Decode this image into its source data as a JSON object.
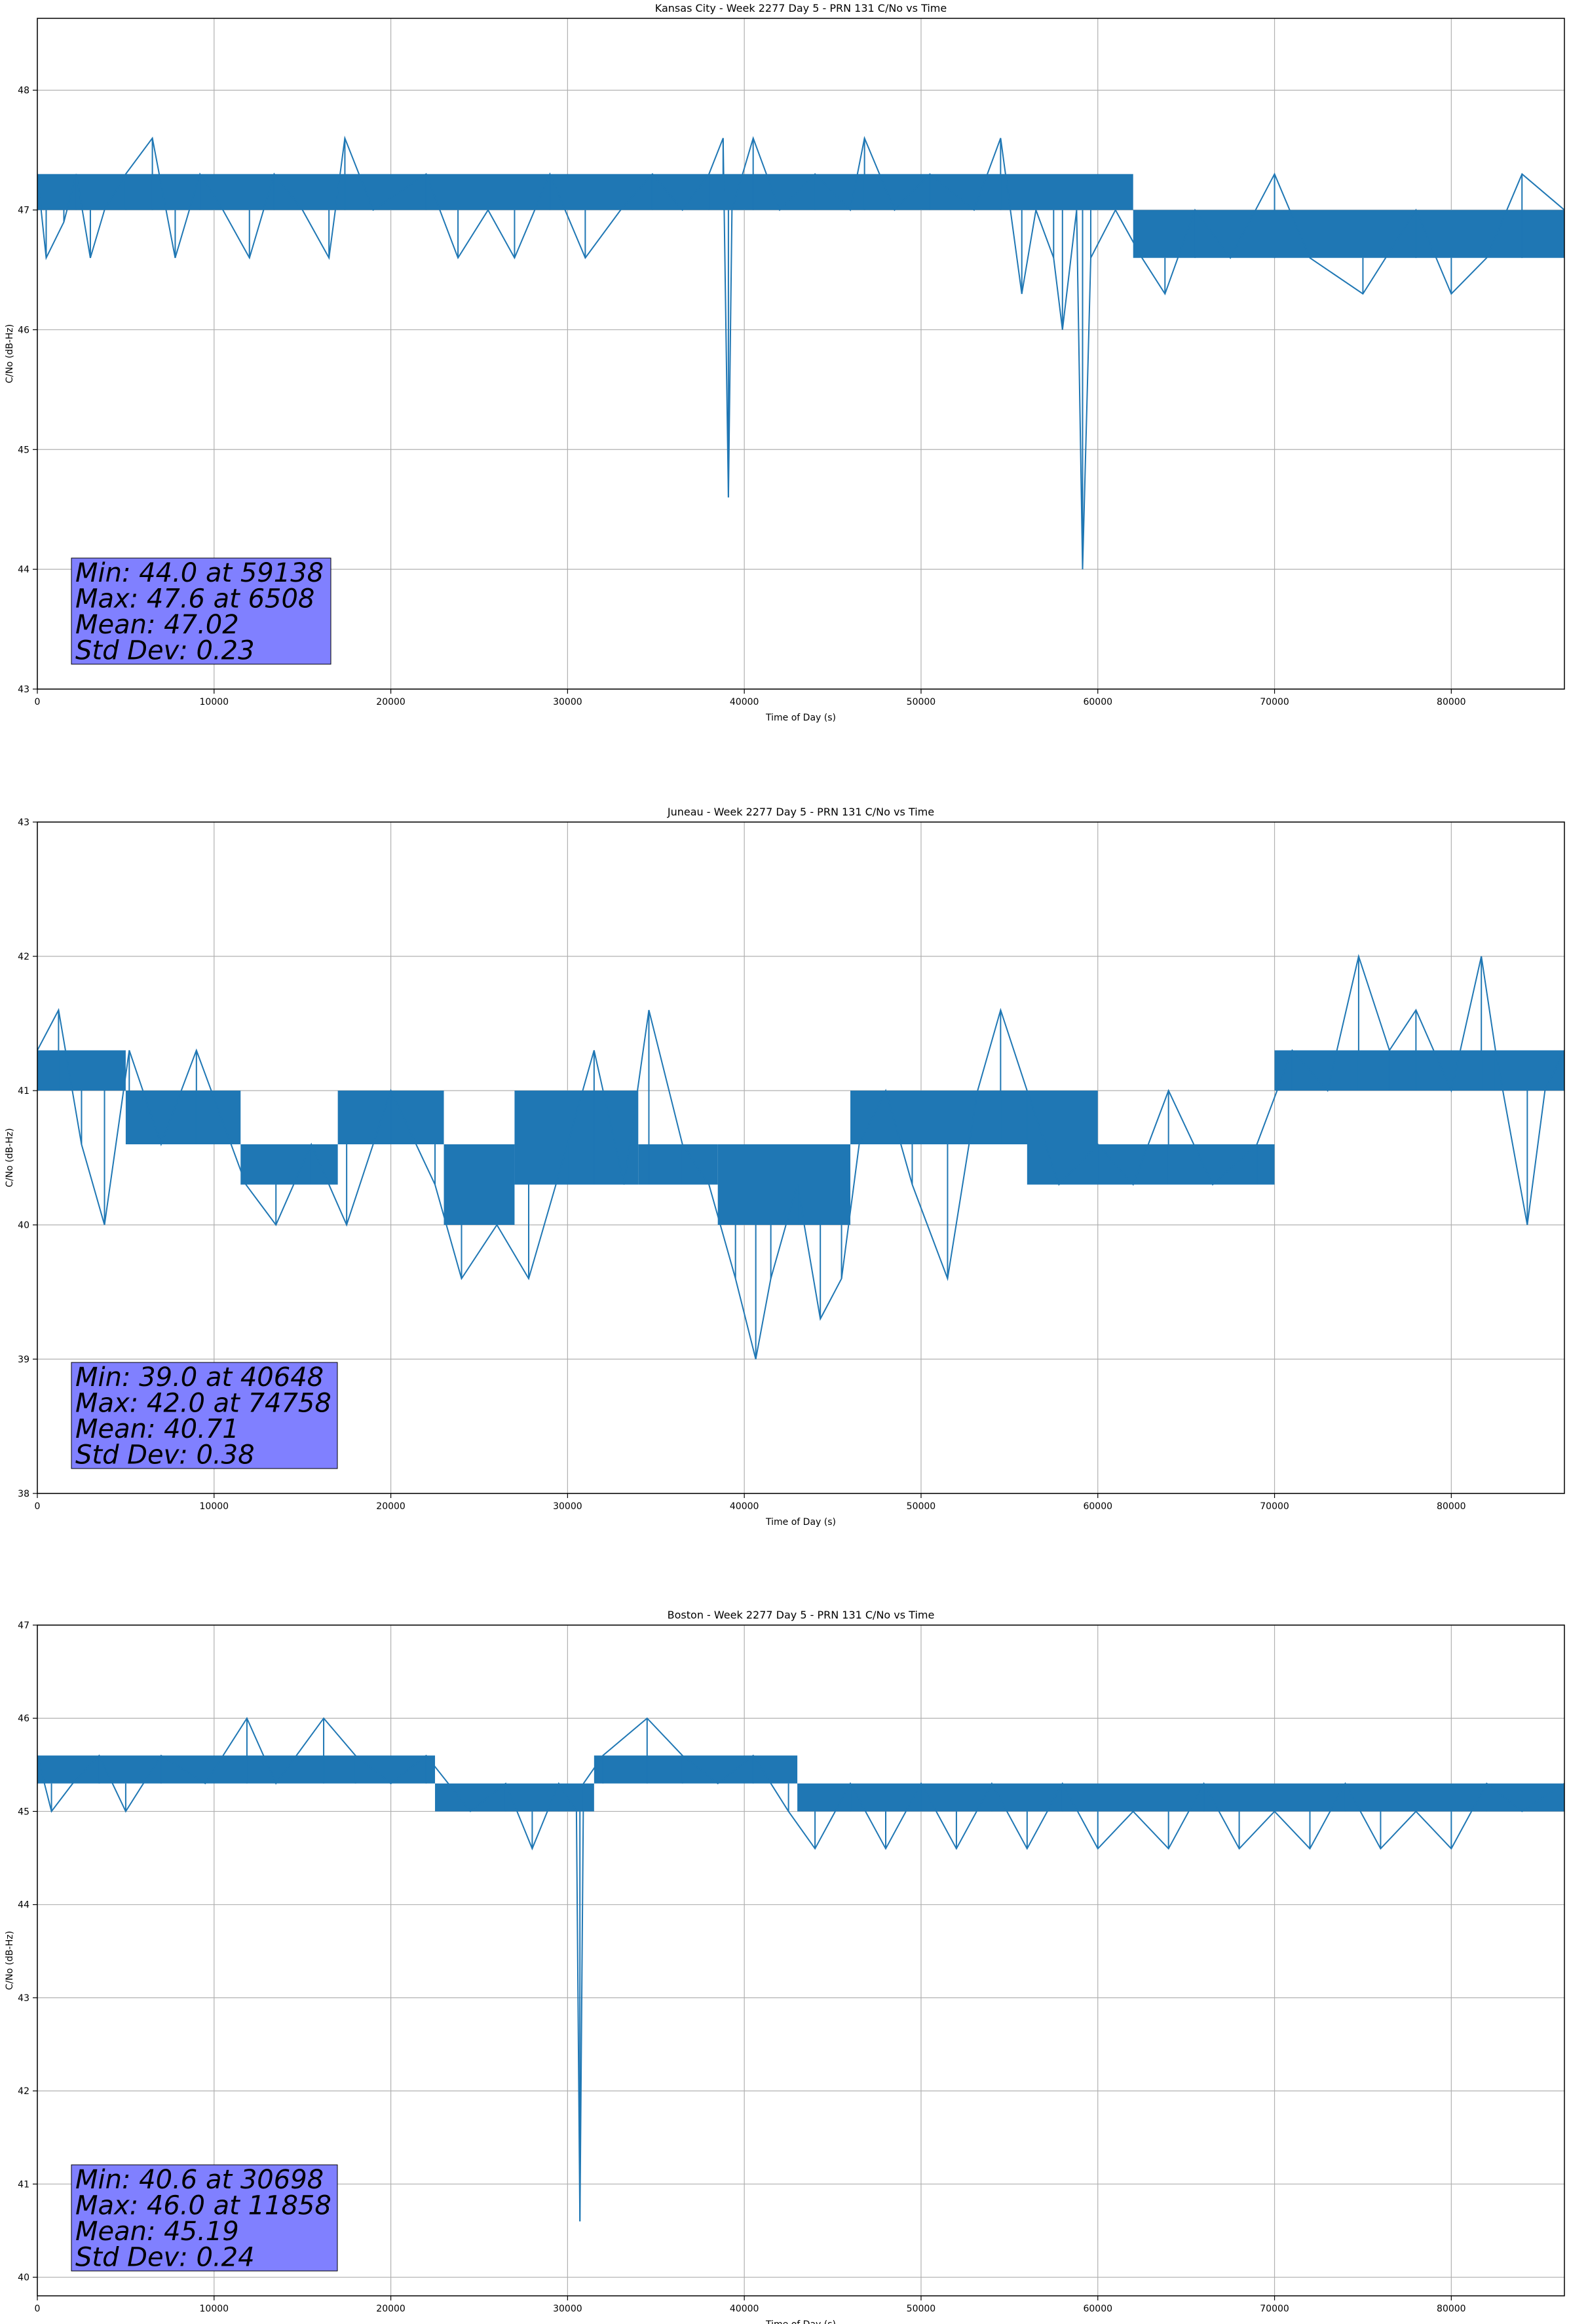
{
  "colors": {
    "series": "#1f77b4",
    "grid": "#b0b0b0",
    "axis": "#000000",
    "stats_box_fill": "#8080ff",
    "stats_box_edge": "#000000"
  },
  "chart_data": [
    {
      "type": "line",
      "title": "Kansas City - Week 2277 Day 5 - PRN 131 C/No vs Time",
      "xlabel": "Time of Day (s)",
      "ylabel": "C/No (dB-Hz)",
      "xlim": [
        0,
        86400
      ],
      "ylim": [
        43,
        48.6
      ],
      "xticks": [
        0,
        10000,
        20000,
        30000,
        40000,
        50000,
        60000,
        70000,
        80000
      ],
      "yticks": [
        43,
        44,
        45,
        46,
        47,
        48
      ],
      "grid": true,
      "stats": [
        "Min: 44.0 at 59138",
        "Max: 47.6 at 6508",
        "Mean: 47.02",
        "Std Dev: 0.23"
      ],
      "bands": [
        {
          "x0": 0,
          "x1": 62000,
          "lo": 47.0,
          "hi": 47.3
        },
        {
          "x0": 62000,
          "x1": 86400,
          "lo": 46.6,
          "hi": 47.0
        }
      ],
      "x": [
        0,
        500,
        1500,
        2200,
        3000,
        3800,
        5000,
        6508,
        7800,
        9200,
        10500,
        12000,
        13400,
        15000,
        16500,
        17400,
        19000,
        22000,
        23800,
        25500,
        27000,
        29000,
        31000,
        33000,
        34800,
        36500,
        38000,
        38800,
        39100,
        39300,
        40500,
        42000,
        44000,
        46000,
        46800,
        48500,
        50500,
        53000,
        54500,
        55700,
        56500,
        57500,
        58000,
        58800,
        59138,
        59600,
        61000,
        62500,
        63800,
        65500,
        67500,
        70000,
        72000,
        75000,
        78000,
        80000,
        82000,
        84000,
        86400
      ],
      "y": [
        47.3,
        46.6,
        46.9,
        47.3,
        46.6,
        47.0,
        47.3,
        47.6,
        46.6,
        47.3,
        47.0,
        46.6,
        47.3,
        47.0,
        46.6,
        47.6,
        47.0,
        47.3,
        46.6,
        47.0,
        46.6,
        47.3,
        46.6,
        47.0,
        47.3,
        47.0,
        47.3,
        47.6,
        44.6,
        47.0,
        47.6,
        47.0,
        47.3,
        47.0,
        47.6,
        47.0,
        47.3,
        47.0,
        47.6,
        46.3,
        47.0,
        46.6,
        46.0,
        47.0,
        44.0,
        46.6,
        47.0,
        46.6,
        46.3,
        47.0,
        46.6,
        47.3,
        46.6,
        46.3,
        47.0,
        46.3,
        46.6,
        47.3,
        47.0
      ]
    },
    {
      "type": "line",
      "title": "Juneau - Week 2277 Day 5 - PRN 131 C/No vs Time",
      "xlabel": "Time of Day (s)",
      "ylabel": "C/No (dB-Hz)",
      "xlim": [
        0,
        86400
      ],
      "ylim": [
        38,
        43
      ],
      "xticks": [
        0,
        10000,
        20000,
        30000,
        40000,
        50000,
        60000,
        70000,
        80000
      ],
      "yticks": [
        38,
        39,
        40,
        41,
        42,
        43
      ],
      "grid": true,
      "stats": [
        "Min: 39.0 at 40648",
        "Max: 42.0 at 74758",
        "Mean: 40.71",
        "Std Dev: 0.38"
      ],
      "bands": [
        {
          "x0": 0,
          "x1": 5000,
          "lo": 41.0,
          "hi": 41.3
        },
        {
          "x0": 5000,
          "x1": 11500,
          "lo": 40.6,
          "hi": 41.0
        },
        {
          "x0": 11500,
          "x1": 17000,
          "lo": 40.3,
          "hi": 40.6
        },
        {
          "x0": 17000,
          "x1": 23000,
          "lo": 40.6,
          "hi": 41.0
        },
        {
          "x0": 23000,
          "x1": 27000,
          "lo": 40.0,
          "hi": 40.6
        },
        {
          "x0": 27000,
          "x1": 34000,
          "lo": 40.3,
          "hi": 41.0
        },
        {
          "x0": 34000,
          "x1": 38500,
          "lo": 40.3,
          "hi": 40.6
        },
        {
          "x0": 38500,
          "x1": 46000,
          "lo": 40.0,
          "hi": 40.6
        },
        {
          "x0": 46000,
          "x1": 56000,
          "lo": 40.6,
          "hi": 41.0
        },
        {
          "x0": 56000,
          "x1": 60000,
          "lo": 40.3,
          "hi": 41.0
        },
        {
          "x0": 60000,
          "x1": 70000,
          "lo": 40.3,
          "hi": 40.6
        },
        {
          "x0": 70000,
          "x1": 86400,
          "lo": 41.0,
          "hi": 41.3
        }
      ],
      "x": [
        0,
        1200,
        2500,
        3800,
        5200,
        7000,
        9000,
        11800,
        13500,
        15500,
        17500,
        20000,
        22500,
        24000,
        26000,
        27800,
        30000,
        31500,
        33200,
        34600,
        36500,
        38000,
        39500,
        40648,
        41500,
        43000,
        44300,
        45500,
        46500,
        48000,
        49500,
        51500,
        53200,
        54500,
        56000,
        57800,
        60000,
        62000,
        64000,
        66500,
        69000,
        71000,
        73000,
        74758,
        76500,
        78000,
        80000,
        81700,
        82500,
        84300,
        85300,
        86400
      ],
      "y": [
        41.3,
        41.6,
        40.6,
        40.0,
        41.3,
        40.6,
        41.3,
        40.3,
        40.0,
        40.6,
        40.0,
        41.0,
        40.3,
        39.6,
        40.0,
        39.6,
        40.6,
        41.3,
        40.3,
        41.6,
        40.6,
        40.3,
        39.6,
        39.0,
        39.6,
        40.3,
        39.3,
        39.6,
        40.6,
        41.0,
        40.3,
        39.6,
        41.0,
        41.6,
        41.0,
        40.3,
        40.6,
        40.3,
        41.0,
        40.3,
        40.6,
        41.3,
        41.0,
        42.0,
        41.3,
        41.6,
        41.0,
        42.0,
        41.3,
        40.0,
        41.0,
        41.3
      ]
    },
    {
      "type": "line",
      "title": "Boston - Week 2277 Day 5 - PRN 131 C/No vs Time",
      "xlabel": "Time of Day (s)",
      "ylabel": "C/No (dB-Hz)",
      "xlim": [
        0,
        86400
      ],
      "ylim": [
        39.8,
        47
      ],
      "xticks": [
        0,
        10000,
        20000,
        30000,
        40000,
        50000,
        60000,
        70000,
        80000
      ],
      "yticks": [
        40,
        41,
        42,
        43,
        44,
        45,
        46,
        47
      ],
      "grid": true,
      "stats": [
        "Min: 40.6 at 30698",
        "Max: 46.0 at 11858",
        "Mean: 45.19",
        "Std Dev: 0.24"
      ],
      "bands": [
        {
          "x0": 0,
          "x1": 22500,
          "lo": 45.3,
          "hi": 45.6
        },
        {
          "x0": 22500,
          "x1": 31500,
          "lo": 45.0,
          "hi": 45.3
        },
        {
          "x0": 31500,
          "x1": 43000,
          "lo": 45.3,
          "hi": 45.6
        },
        {
          "x0": 43000,
          "x1": 86400,
          "lo": 45.0,
          "hi": 45.3
        }
      ],
      "x": [
        0,
        800,
        2000,
        3500,
        5000,
        7000,
        9500,
        11858,
        13500,
        16200,
        18000,
        20000,
        22000,
        24500,
        26500,
        28000,
        29500,
        30500,
        30698,
        30900,
        32000,
        34500,
        36500,
        38500,
        40500,
        42500,
        44000,
        46000,
        48000,
        50000,
        52000,
        54000,
        56000,
        58000,
        60000,
        62000,
        64000,
        66000,
        68000,
        70000,
        72000,
        74000,
        76000,
        78000,
        80000,
        82000,
        84000,
        86400
      ],
      "y": [
        45.6,
        45.0,
        45.3,
        45.6,
        45.0,
        45.6,
        45.3,
        46.0,
        45.3,
        46.0,
        45.6,
        45.3,
        45.6,
        45.0,
        45.3,
        44.6,
        45.3,
        45.0,
        40.6,
        45.3,
        45.6,
        46.0,
        45.6,
        45.3,
        45.6,
        45.0,
        44.6,
        45.3,
        44.6,
        45.3,
        44.6,
        45.3,
        44.6,
        45.3,
        44.6,
        45.0,
        44.6,
        45.3,
        44.6,
        45.0,
        44.6,
        45.3,
        44.6,
        45.0,
        44.6,
        45.3,
        45.0,
        45.3
      ]
    }
  ]
}
